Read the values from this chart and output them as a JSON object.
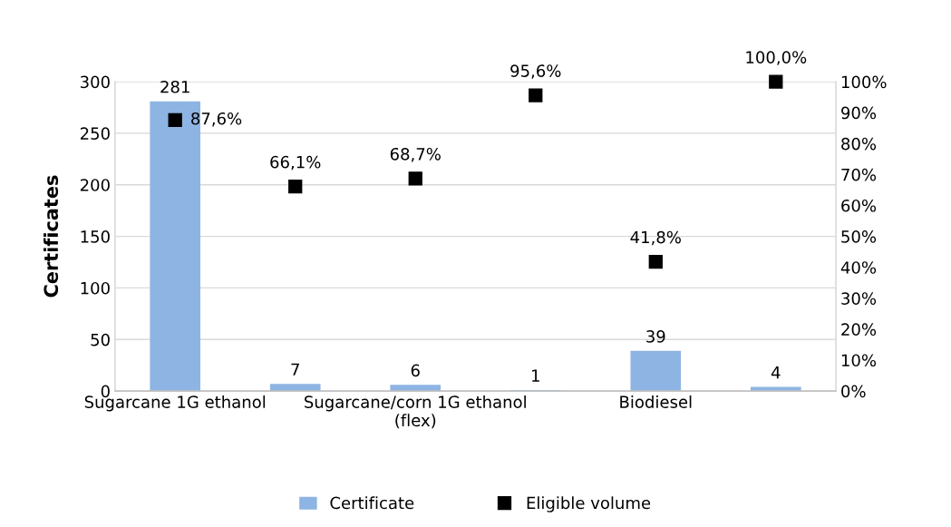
{
  "chart_data": {
    "type": "bar",
    "categories": [
      "Sugarcane 1G ethanol",
      null,
      "Sugarcane/corn 1G ethanol\n(flex)",
      null,
      "Biodiesel",
      null
    ],
    "ylabel": "Certificates",
    "ylim": [
      0,
      300
    ],
    "yticks": [
      0,
      50,
      100,
      150,
      200,
      250,
      300
    ],
    "y2lim": [
      0,
      100
    ],
    "y2ticks": [
      {
        "value": 0,
        "label": "0%"
      },
      {
        "value": 10,
        "label": "10%"
      },
      {
        "value": 20,
        "label": "20%"
      },
      {
        "value": 30,
        "label": "30%"
      },
      {
        "value": 40,
        "label": "40%"
      },
      {
        "value": 50,
        "label": "50%"
      },
      {
        "value": 60,
        "label": "60%"
      },
      {
        "value": 70,
        "label": "70%"
      },
      {
        "value": 80,
        "label": "80%"
      },
      {
        "value": 90,
        "label": "90%"
      },
      {
        "value": 100,
        "label": "100%"
      }
    ],
    "grid": "y",
    "legend": "bottom",
    "series": [
      {
        "name": "Certificate",
        "color": "#8eb4e3",
        "values": [
          281,
          7,
          6,
          1,
          39,
          4
        ],
        "value_labels": [
          "281",
          "7",
          "6",
          "1",
          "39",
          "4"
        ]
      },
      {
        "name": "Eligible volume",
        "type": "scatter",
        "axis": "y2",
        "marker": "square",
        "color": "#000000",
        "values": [
          87.6,
          66.1,
          68.7,
          95.6,
          41.8,
          100.0
        ],
        "value_labels": [
          "87,6%",
          "66,1%",
          "68,7%",
          "95,6%",
          "41,8%",
          "100,0%"
        ]
      }
    ]
  }
}
